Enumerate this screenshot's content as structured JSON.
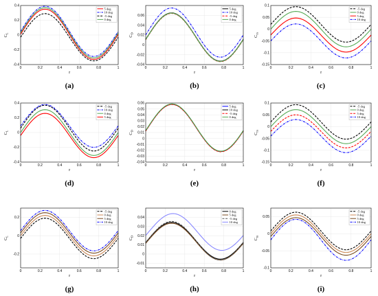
{
  "chart_data": [
    {
      "panel": "(a)",
      "type": "line",
      "ylabel": "C_L",
      "xlabel": "τ",
      "xlim": [
        0,
        1
      ],
      "ylim": [
        -0.4,
        0.4
      ],
      "xticks": [
        "0",
        "0.2",
        "0.4",
        "0.6",
        "0.8",
        "1"
      ],
      "yticks": [
        "-0.4",
        "-0.2",
        "0",
        "0.2",
        "0.4"
      ],
      "legend_position": "top-right",
      "series": [
        {
          "name": "5 deg",
          "color": "#ff0000",
          "dash": "solid",
          "mean": 0.01,
          "amp": 0.34,
          "phase": 0.0
        },
        {
          "name": "10 deg",
          "color": "#0000ff",
          "dash": "dashdot",
          "mean": 0.05,
          "amp": 0.34,
          "phase": 0.0
        },
        {
          "name": "-5 deg",
          "color": "#000000",
          "dash": "dash",
          "mean": -0.03,
          "amp": 0.32,
          "phase": 0.0
        },
        {
          "name": "0 deg",
          "color": "#55aa55",
          "dash": "solid",
          "mean": 0.03,
          "amp": 0.34,
          "phase": 0.0
        }
      ]
    },
    {
      "panel": "(b)",
      "type": "line",
      "ylabel": "C_D",
      "xlabel": "τ",
      "xlim": [
        0,
        1
      ],
      "ylim": [
        -0.04,
        0.08
      ],
      "xticks": [
        "0",
        "0.2",
        "0.4",
        "0.6",
        "0.8",
        "1"
      ],
      "yticks": [
        "-0.04",
        "-0.02",
        "0",
        "0.02",
        "0.04",
        "0.06"
      ],
      "legend_position": "top-right",
      "series": [
        {
          "name": "5 deg",
          "color": "#000000",
          "dash": "solid",
          "mean": 0.016,
          "amp": 0.049,
          "phase": 0.015
        },
        {
          "name": "10 deg",
          "color": "#0000ff",
          "dash": "dashdot",
          "mean": 0.025,
          "amp": 0.05,
          "phase": 0.015
        },
        {
          "name": "-5 deg",
          "color": "#ff0000",
          "dash": "dash",
          "mean": 0.015,
          "amp": 0.049,
          "phase": 0.015
        },
        {
          "name": "0 deg",
          "color": "#55aa55",
          "dash": "solid",
          "mean": 0.0155,
          "amp": 0.049,
          "phase": 0.015
        }
      ]
    },
    {
      "panel": "(c)",
      "type": "line",
      "ylabel": "C_m",
      "xlabel": "τ",
      "xlim": [
        0,
        1
      ],
      "ylim": [
        -0.15,
        0.1
      ],
      "xticks": [
        "0",
        "0.2",
        "0.4",
        "0.6",
        "0.8",
        "1"
      ],
      "yticks": [
        "-0.15",
        "-0.1",
        "-0.05",
        "0",
        "0.05",
        "0.1"
      ],
      "legend_position": "top-right",
      "series": [
        {
          "name": "-5 deg",
          "color": "#000000",
          "dash": "dash",
          "mean": 0.02,
          "amp": 0.075,
          "phase": 0.0
        },
        {
          "name": "0 deg",
          "color": "#55aa55",
          "dash": "solid",
          "mean": 0.0,
          "amp": 0.075,
          "phase": 0.0
        },
        {
          "name": "5 deg",
          "color": "#ff0000",
          "dash": "solid",
          "mean": -0.025,
          "amp": 0.072,
          "phase": 0.0
        },
        {
          "name": "10 deg",
          "color": "#0000ff",
          "dash": "dashdot",
          "mean": -0.05,
          "amp": 0.072,
          "phase": 0.0
        }
      ]
    },
    {
      "panel": "(d)",
      "type": "line",
      "ylabel": "C_L",
      "xlabel": "τ",
      "xlim": [
        0,
        1
      ],
      "ylim": [
        -0.4,
        0.4
      ],
      "xticks": [
        "0",
        "0.2",
        "0.4",
        "0.6",
        "0.8",
        "1"
      ],
      "yticks": [
        "-0.4",
        "-0.2",
        "0",
        "0.2",
        "0.4"
      ],
      "legend_position": "top-right",
      "series": [
        {
          "name": "-5 deg",
          "color": "#000000",
          "dash": "dash",
          "mean": 0.06,
          "amp": 0.31,
          "phase": 0.0
        },
        {
          "name": "10 deg",
          "color": "#0000ff",
          "dash": "dashdot",
          "mean": 0.09,
          "amp": 0.29,
          "phase": 0.0
        },
        {
          "name": "0 deg",
          "color": "#55aa55",
          "dash": "solid",
          "mean": 0.0,
          "amp": 0.31,
          "phase": 0.0
        },
        {
          "name": "5 deg",
          "color": "#ff0000",
          "dash": "solid",
          "mean": -0.04,
          "amp": 0.3,
          "phase": 0.0
        }
      ]
    },
    {
      "panel": "(e)",
      "type": "line",
      "ylabel": "C_D",
      "xlabel": "τ",
      "xlim": [
        0,
        1
      ],
      "ylim": [
        -0.04,
        0.06
      ],
      "xticks": [
        "0",
        "0.2",
        "0.4",
        "0.6",
        "0.8",
        "1"
      ],
      "yticks": [
        "-0.04",
        "-0.03",
        "-0.02",
        "-0.01",
        "0",
        "0.01",
        "0.02",
        "0.03",
        "0.04",
        "0.05",
        "0.06"
      ],
      "legend_position": "top-right",
      "series": [
        {
          "name": "5 deg",
          "color": "#0000ff",
          "dash": "solid",
          "mean": 0.018,
          "amp": 0.04,
          "phase": 0.02
        },
        {
          "name": "10 deg",
          "color": "#000000",
          "dash": "solid",
          "mean": 0.018,
          "amp": 0.04,
          "phase": 0.02
        },
        {
          "name": "-5 deg",
          "color": "#ff0000",
          "dash": "dash",
          "mean": 0.0175,
          "amp": 0.04,
          "phase": 0.02
        },
        {
          "name": "0 deg",
          "color": "#55aa55",
          "dash": "solid",
          "mean": 0.0185,
          "amp": 0.04,
          "phase": 0.02
        }
      ]
    },
    {
      "panel": "(f)",
      "type": "line",
      "ylabel": "C_m",
      "xlabel": "τ",
      "xlim": [
        0,
        1
      ],
      "ylim": [
        -0.15,
        0.1
      ],
      "xticks": [
        "0",
        "0.2",
        "0.4",
        "0.6",
        "0.8",
        "1"
      ],
      "yticks": [
        "-0.15",
        "-0.1",
        "-0.05",
        "0",
        "0.05",
        "0.1"
      ],
      "legend_position": "top-right",
      "series": [
        {
          "name": "-5 deg",
          "color": "#000000",
          "dash": "dash",
          "mean": 0.02,
          "amp": 0.073,
          "phase": 0.0
        },
        {
          "name": "0 deg",
          "color": "#55aa55",
          "dash": "solid",
          "mean": 0.0,
          "amp": 0.072,
          "phase": 0.0
        },
        {
          "name": "5 deg",
          "color": "#ff0000",
          "dash": "dash",
          "mean": -0.02,
          "amp": 0.07,
          "phase": 0.0
        },
        {
          "name": "10 deg",
          "color": "#0000ff",
          "dash": "dashdot",
          "mean": -0.04,
          "amp": 0.07,
          "phase": 0.0
        }
      ]
    },
    {
      "panel": "(g)",
      "type": "line",
      "ylabel": "C_L",
      "xlabel": "τ",
      "xlim": [
        0,
        1
      ],
      "ylim": [
        -0.35,
        0.3
      ],
      "xticks": [
        "0",
        "0.2",
        "0.4",
        "0.6",
        "0.8",
        "1"
      ],
      "yticks": [
        "-0.2",
        "0",
        "0.2"
      ],
      "legend_position": "top-right",
      "series": [
        {
          "name": "-5 deg",
          "color": "#000000",
          "dash": "dash",
          "mean": -0.03,
          "amp": 0.22,
          "phase": 0.0
        },
        {
          "name": "0 deg",
          "color": "#cc8855",
          "dash": "solid",
          "mean": 0.0,
          "amp": 0.22,
          "phase": 0.0
        },
        {
          "name": "5 deg",
          "color": "#7a4a1e",
          "dash": "solid",
          "mean": 0.03,
          "amp": 0.22,
          "phase": 0.0
        },
        {
          "name": "10 deg",
          "color": "#0000ff",
          "dash": "dashdot",
          "mean": 0.055,
          "amp": 0.22,
          "phase": 0.0
        }
      ]
    },
    {
      "panel": "(h)",
      "type": "line",
      "ylabel": "C_D",
      "xlabel": "τ",
      "xlim": [
        0,
        1
      ],
      "ylim": [
        -0.015,
        0.05
      ],
      "xticks": [
        "0",
        "0.2",
        "0.4",
        "0.6",
        "0.8",
        "1"
      ],
      "yticks": [
        "-0.01",
        "0",
        "0.01",
        "0.02",
        "0.03",
        "0.04"
      ],
      "legend_position": "top-right",
      "series": [
        {
          "name": "0 deg",
          "color": "#000000",
          "dash": "solid",
          "mean": 0.0145,
          "amp": 0.02,
          "phase": 0.015
        },
        {
          "name": "5 deg",
          "color": "#7a4a1e",
          "dash": "solid",
          "mean": 0.0135,
          "amp": 0.02,
          "phase": 0.015
        },
        {
          "name": "-5 deg",
          "color": "#555555",
          "dash": "dash",
          "mean": 0.0145,
          "amp": 0.021,
          "phase": 0.015
        },
        {
          "name": "10 deg",
          "color": "#8888ff",
          "dash": "solid",
          "mean": 0.024,
          "amp": 0.02,
          "phase": 0.03
        }
      ]
    },
    {
      "panel": "(i)",
      "type": "line",
      "ylabel": "C_m",
      "xlabel": "τ",
      "xlim": [
        0,
        1
      ],
      "ylim": [
        -0.1,
        0.075
      ],
      "xticks": [
        "0",
        "0.2",
        "0.4",
        "0.6",
        "0.8",
        "1"
      ],
      "yticks": [
        "-0.1",
        "-0.05",
        "0",
        "0.05"
      ],
      "legend_position": "top-right",
      "series": [
        {
          "name": "-5 deg",
          "color": "#000000",
          "dash": "dash",
          "mean": 0.008,
          "amp": 0.055,
          "phase": 0.0
        },
        {
          "name": "0 deg",
          "color": "#cc8855",
          "dash": "solid",
          "mean": 0.0,
          "amp": 0.055,
          "phase": 0.0
        },
        {
          "name": "5 deg",
          "color": "#7a4a1e",
          "dash": "solid",
          "mean": -0.008,
          "amp": 0.055,
          "phase": 0.0
        },
        {
          "name": "10 deg",
          "color": "#0000ff",
          "dash": "dashdot",
          "mean": -0.018,
          "amp": 0.06,
          "phase": 0.0
        }
      ]
    }
  ]
}
